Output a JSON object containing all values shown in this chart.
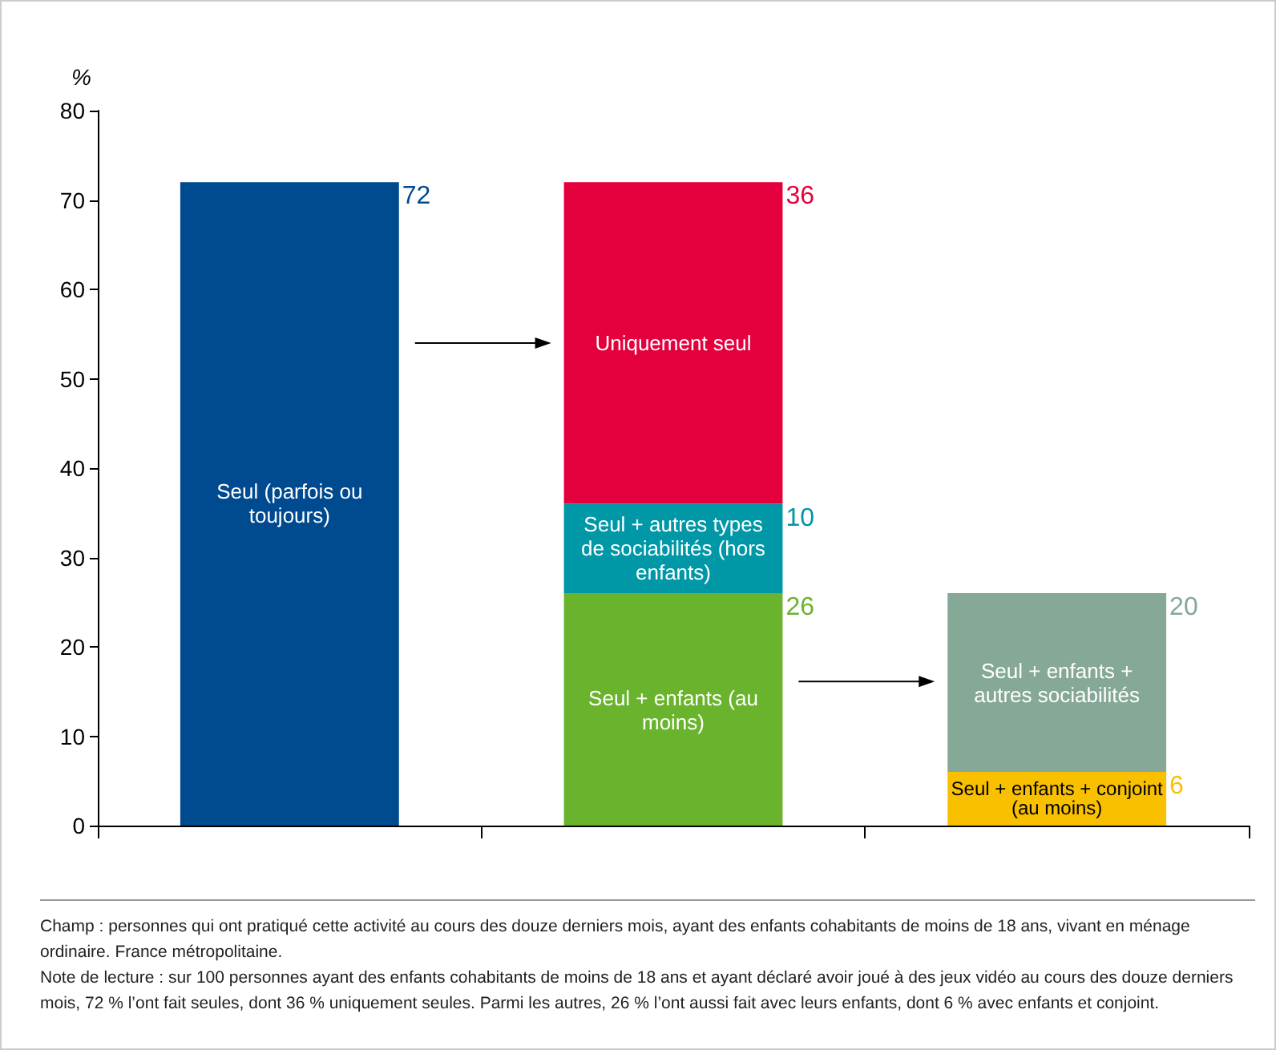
{
  "chart_data": {
    "type": "bar",
    "ylabel": "%",
    "categories": [
      null,
      null,
      null
    ],
    "stacked": true,
    "ylim": [
      0,
      80
    ],
    "yticks": [
      0,
      10,
      20,
      30,
      40,
      50,
      60,
      70,
      80
    ],
    "grid": false,
    "legend": false,
    "data_labels": true,
    "series": [
      {
        "name": "Seul (parfois ou toujours)",
        "color": "#004a8f",
        "values": [
          72,
          null,
          null
        ]
      },
      {
        "name": "Seul + enfants (au moins)",
        "color": "#6ab42d",
        "values": [
          null,
          26,
          null
        ]
      },
      {
        "name": "Seul + autres types de sociabilités (hors enfants)",
        "color": "#0097a7",
        "values": [
          null,
          10,
          null
        ]
      },
      {
        "name": "Uniquement seul",
        "color": "#e4003c",
        "values": [
          null,
          36,
          null
        ]
      },
      {
        "name": "Seul + enfants + conjoint (au moins)",
        "color": "#f9c000",
        "values": [
          null,
          null,
          6
        ]
      },
      {
        "name": "Seul + enfants + autres sociabilités",
        "color": "#86a896",
        "values": [
          null,
          null,
          20
        ]
      }
    ],
    "annotations": [
      "Champ : personnes qui ont pratiqué cette activité au cours des douze derniers mois, ayant des enfants cohabitants de moins de 18 ans, vivant en ménage ordinaire. France métropolitaine.",
      "Note de lecture : sur 100 personnes ayant des enfants cohabitants de moins de 18 ans et ayant déclaré avoir joué à des jeux vidéo au cours des douze derniers mois, 72 % l’ont fait seules, dont 36 % uniquement seules. Parmi les autres, 26 % l’ont aussi fait avec leurs enfants, dont 6 % avec enfants et conjoint."
    ]
  }
}
